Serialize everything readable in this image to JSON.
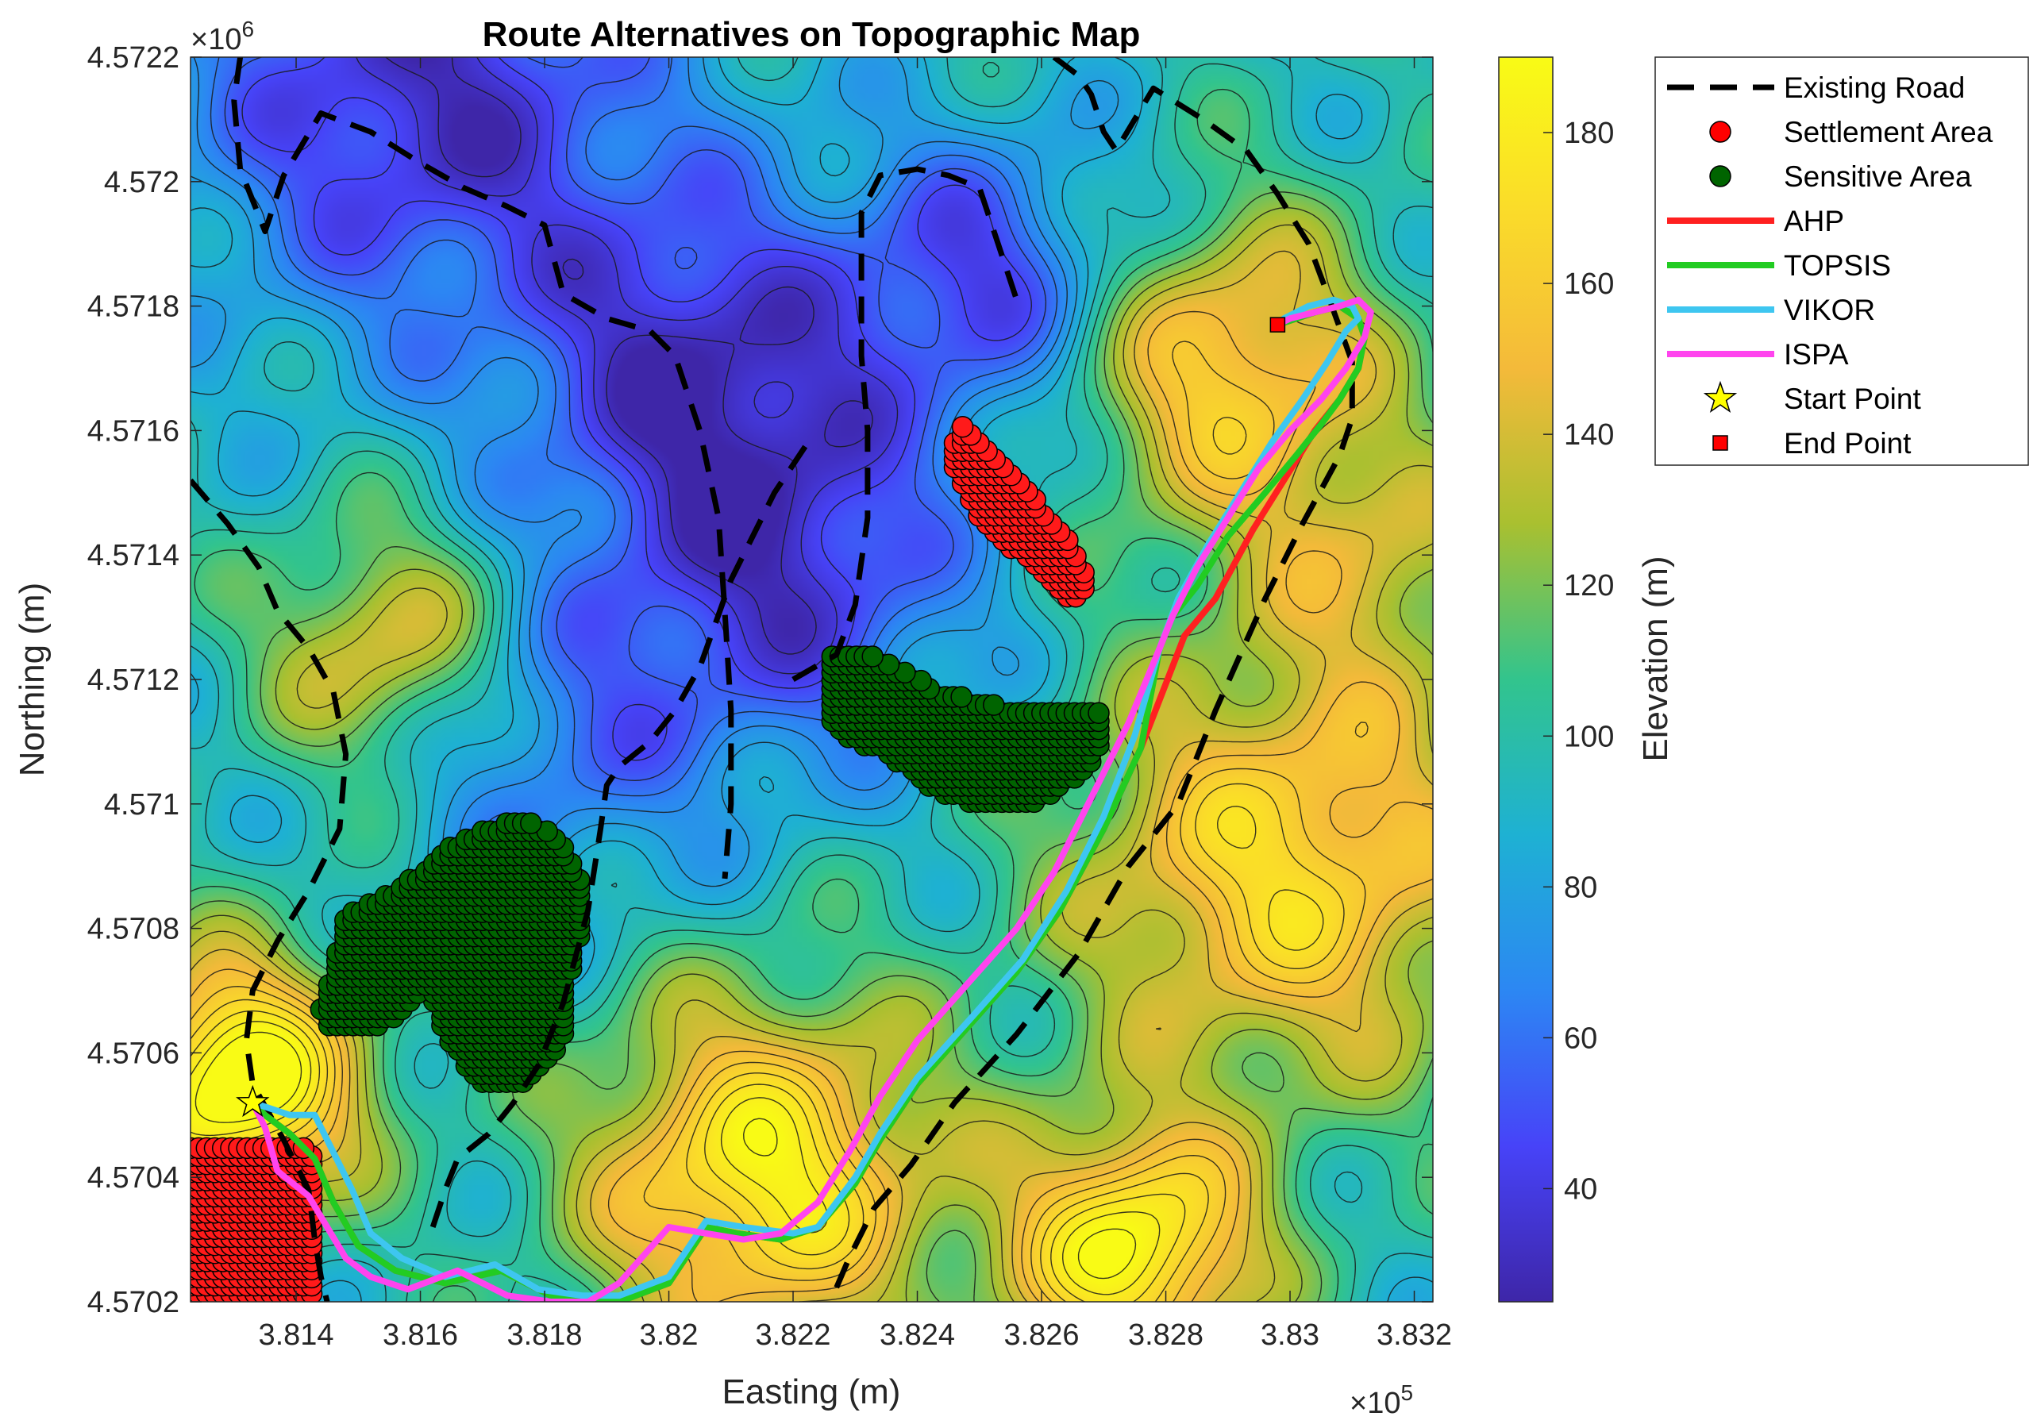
{
  "chart_data": {
    "type": "map",
    "title": "Route Alternatives on Topographic Map",
    "xlabel": "Easting (m)",
    "ylabel": "Northing (m)",
    "colorbar_label": "Elevation (m)",
    "x_multiplier": "×10",
    "x_multiplier_exp": "5",
    "y_multiplier": "×10",
    "y_multiplier_exp": "6",
    "xlim": [
      381230,
      383230
    ],
    "ylim": [
      4570200,
      4572200
    ],
    "clim": [
      25,
      190
    ],
    "x_ticks": [
      381400,
      381600,
      381800,
      382000,
      382200,
      382400,
      382600,
      382800,
      383000,
      383200
    ],
    "x_tick_labels": [
      "3.814",
      "3.816",
      "3.818",
      "3.82",
      "3.822",
      "3.824",
      "3.826",
      "3.828",
      "3.83",
      "3.832"
    ],
    "y_ticks": [
      4570200,
      4570400,
      4570600,
      4570800,
      4571000,
      4571200,
      4571400,
      4571600,
      4571800,
      4572000,
      4572200
    ],
    "y_tick_labels": [
      "4.5702",
      "4.5704",
      "4.5706",
      "4.5708",
      "4.571",
      "4.5712",
      "4.5714",
      "4.5716",
      "4.5718",
      "4.572",
      "4.5722"
    ],
    "colorbar_ticks": [
      40,
      60,
      80,
      100,
      120,
      140,
      160,
      180
    ],
    "colorbar_tick_labels": [
      "40",
      "60",
      "80",
      "100",
      "120",
      "140",
      "160",
      "180"
    ],
    "colormap": [
      "#3e26a8",
      "#4743f8",
      "#2c87f3",
      "#1eb1d3",
      "#32c48d",
      "#a9c030",
      "#f4ba3a",
      "#fadb2a",
      "#f9fb15"
    ],
    "grid": false,
    "legend_position": "outside-right",
    "legend": [
      {
        "label": "Existing Road",
        "style": "dashed",
        "color": "#000000"
      },
      {
        "label": "Settlement Area",
        "style": "circle",
        "color": "#ff0000"
      },
      {
        "label": "Sensitive Area",
        "style": "circle",
        "color": "#006400"
      },
      {
        "label": "AHP",
        "style": "line",
        "color": "#ff2020"
      },
      {
        "label": "TOPSIS",
        "style": "line",
        "color": "#22cc22"
      },
      {
        "label": "VIKOR",
        "style": "line",
        "color": "#3ec6f0"
      },
      {
        "label": "ISPA",
        "style": "line",
        "color": "#ff44ee"
      },
      {
        "label": "Start Point",
        "style": "star",
        "color": "#ffff00"
      },
      {
        "label": "End Point",
        "style": "square",
        "color": "#ff0000"
      }
    ],
    "series": [
      {
        "name": "AHP",
        "color": "#ff2020",
        "x": [
          381330,
          381350,
          381390,
          381430,
          381460,
          381500,
          381560,
          381640,
          381730,
          381810,
          381870,
          381920,
          382000,
          382060,
          382110,
          382180,
          382240,
          382300,
          382340,
          382400,
          382480,
          382560,
          382630,
          382700,
          382760,
          382830,
          382880,
          382940,
          382990,
          383040,
          383080,
          383110,
          383120,
          383110,
          383080,
          383040,
          383010,
          382980
        ],
        "y": [
          4570520,
          4570500,
          4570470,
          4570430,
          4570360,
          4570290,
          4570250,
          4570230,
          4570250,
          4570210,
          4570200,
          4570200,
          4570230,
          4570320,
          4570310,
          4570300,
          4570320,
          4570390,
          4570460,
          4570550,
          4570640,
          4570730,
          4570830,
          4570960,
          4571090,
          4571270,
          4571330,
          4571440,
          4571520,
          4571600,
          4571650,
          4571700,
          4571750,
          4571780,
          4571800,
          4571790,
          4571780,
          4571770
        ]
      },
      {
        "name": "TOPSIS",
        "color": "#22cc22",
        "x": [
          381330,
          381350,
          381390,
          381430,
          381460,
          381500,
          381560,
          381640,
          381730,
          381810,
          381870,
          381920,
          382000,
          382060,
          382110,
          382180,
          382240,
          382300,
          382340,
          382400,
          382480,
          382560,
          382630,
          382700,
          382760,
          382790,
          382810,
          382850,
          382900,
          382960,
          383010,
          383050,
          383080,
          383110,
          383120,
          383110,
          383080,
          383040,
          383010,
          382980
        ],
        "y": [
          4570520,
          4570500,
          4570470,
          4570430,
          4570360,
          4570290,
          4570250,
          4570230,
          4570250,
          4570210,
          4570200,
          4570200,
          4570230,
          4570320,
          4570310,
          4570300,
          4570320,
          4570390,
          4570460,
          4570550,
          4570640,
          4570730,
          4570830,
          4570960,
          4571090,
          4571250,
          4571300,
          4571350,
          4571430,
          4571500,
          4571560,
          4571610,
          4571650,
          4571700,
          4571750,
          4571780,
          4571800,
          4571790,
          4571780,
          4571770
        ]
      },
      {
        "name": "VIKOR",
        "color": "#3ec6f0",
        "x": [
          381330,
          381390,
          381430,
          381460,
          381490,
          381520,
          381570,
          381640,
          381720,
          381790,
          381860,
          381920,
          382000,
          382060,
          382120,
          382200,
          382240,
          382300,
          382340,
          382400,
          382490,
          382570,
          382640,
          382700,
          382750,
          382790,
          382820,
          382870,
          382920,
          382970,
          383020,
          383060,
          383090,
          383110,
          383100,
          383070,
          383030,
          382990
        ],
        "y": [
          4570520,
          4570500,
          4570500,
          4570440,
          4570380,
          4570310,
          4570270,
          4570240,
          4570260,
          4570220,
          4570210,
          4570210,
          4570240,
          4570330,
          4570320,
          4570310,
          4570320,
          4570400,
          4570470,
          4570560,
          4570660,
          4570750,
          4570860,
          4570980,
          4571110,
          4571250,
          4571330,
          4571420,
          4571500,
          4571580,
          4571650,
          4571710,
          4571760,
          4571780,
          4571800,
          4571810,
          4571800,
          4571780
        ]
      },
      {
        "name": "ISPA",
        "color": "#ff44ee",
        "x": [
          381330,
          381350,
          381370,
          381420,
          381450,
          381480,
          381520,
          381580,
          381660,
          381740,
          381810,
          381870,
          381920,
          382000,
          382060,
          382120,
          382180,
          382240,
          382290,
          382340,
          382400,
          382480,
          382560,
          382620,
          382680,
          382740,
          382790,
          382810,
          382850,
          382900,
          382950,
          383000,
          383050,
          383090,
          383120,
          383130,
          383110,
          383080,
          383040,
          383000,
          382980
        ],
        "y": [
          4570520,
          4570480,
          4570410,
          4570370,
          4570320,
          4570270,
          4570240,
          4570220,
          4570250,
          4570210,
          4570200,
          4570200,
          4570230,
          4570320,
          4570310,
          4570300,
          4570310,
          4570360,
          4570440,
          4570530,
          4570620,
          4570710,
          4570800,
          4570890,
          4571010,
          4571130,
          4571250,
          4571300,
          4571380,
          4571460,
          4571540,
          4571600,
          4571650,
          4571700,
          4571750,
          4571790,
          4571810,
          4571800,
          4571790,
          4571780,
          4571770
        ]
      }
    ],
    "existing_roads": [
      {
        "x": [
          381310,
          381300,
          381310,
          381350,
          381380,
          381440,
          381520,
          381600,
          381670,
          381740,
          381800,
          381830,
          381900,
          381970,
          382010,
          382050,
          382080,
          382090,
          382100,
          382100,
          382090
        ],
        "y": [
          4572200,
          4572130,
          4572020,
          4571920,
          4572010,
          4572110,
          4572080,
          4572030,
          4571990,
          4571960,
          4571930,
          4571820,
          4571780,
          4571760,
          4571720,
          4571600,
          4571460,
          4571310,
          4571150,
          4571000,
          4570880
        ]
      },
      {
        "x": [
          381230,
          381290,
          381340,
          381370,
          381420,
          381460,
          381480,
          381470,
          381420,
          381370,
          381330,
          381320,
          381330,
          381380,
          381420,
          381430,
          381440,
          381450
        ],
        "y": [
          4571520,
          4571450,
          4571380,
          4571310,
          4571250,
          4571180,
          4571080,
          4570960,
          4570860,
          4570780,
          4570700,
          4570620,
          4570550,
          4570460,
          4570380,
          4570300,
          4570240,
          4570200
        ]
      },
      {
        "x": [
          381620,
          381640,
          381660,
          381710,
          381750,
          381790,
          381830,
          381870,
          381890,
          381900,
          381920,
          381970,
          382010,
          382050,
          382100,
          382170,
          382230
        ],
        "y": [
          4570320,
          4570380,
          4570430,
          4570470,
          4570520,
          4570580,
          4570680,
          4570830,
          4570960,
          4571030,
          4571060,
          4571100,
          4571150,
          4571220,
          4571360,
          4571500,
          4571590
        ]
      },
      {
        "x": [
          382200,
          382270,
          382300,
          382320,
          382320,
          382310,
          382310,
          382340,
          382400,
          382450,
          382500,
          382530,
          382560
        ],
        "y": [
          4571200,
          4571240,
          4571320,
          4571460,
          4571600,
          4571720,
          4571950,
          4572010,
          4572020,
          4572010,
          4571990,
          4571900,
          4571810
        ]
      },
      {
        "x": [
          382620,
          382660,
          382680,
          382700,
          382720,
          382780,
          382860,
          382930,
          382980,
          383030,
          383060,
          383100,
          383100,
          383080,
          383020,
          382960,
          382880,
          382820,
          382740,
          382660,
          382560,
          382460,
          382390,
          382330,
          382290,
          382260
        ],
        "y": [
          4572200,
          4572170,
          4572140,
          4572080,
          4572050,
          4572150,
          4572100,
          4572050,
          4571980,
          4571900,
          4571820,
          4571710,
          4571620,
          4571560,
          4571450,
          4571330,
          4571150,
          4571000,
          4570900,
          4570760,
          4570630,
          4570520,
          4570420,
          4570350,
          4570270,
          4570200
        ]
      }
    ],
    "settlement_areas": [
      {
        "polygon_x": [
          382470,
          382490,
          382530,
          382590,
          382640,
          382680,
          382650,
          382600,
          382540,
          382500,
          382460,
          382460
        ],
        "polygon_y": [
          4571620,
          4571600,
          4571560,
          4571490,
          4571430,
          4571350,
          4571320,
          4571370,
          4571420,
          4571460,
          4571530,
          4571580
        ]
      },
      {
        "polygon_x": [
          381230,
          381420,
          381430,
          381430,
          381420,
          381230
        ],
        "polygon_y": [
          4570460,
          4570460,
          4570420,
          4570220,
          4570200,
          4570200
        ]
      }
    ],
    "sensitive_areas": [
      {
        "polygon_x": [
          382260,
          382330,
          382440,
          382520,
          382600,
          382690,
          382700,
          382670,
          382590,
          382520,
          382430,
          382350,
          382270,
          382250
        ],
        "polygon_y": [
          4571240,
          4571240,
          4571180,
          4571160,
          4571150,
          4571160,
          4571100,
          4571050,
          4571000,
          4570990,
          4571020,
          4571080,
          4571110,
          4571170
        ]
      },
      {
        "polygon_x": [
          381440,
          381480,
          381560,
          381660,
          381760,
          381820,
          381860,
          381860,
          381840,
          381830,
          381770,
          381700,
          381640,
          381610,
          381570,
          381500,
          381450
        ],
        "polygon_y": [
          4570670,
          4570820,
          4570860,
          4570940,
          4570980,
          4570950,
          4570880,
          4570800,
          4570720,
          4570620,
          4570550,
          4570540,
          4570630,
          4570700,
          4570660,
          4570630,
          4570640
        ]
      }
    ],
    "start_point": {
      "x": 381330,
      "y": 4570520
    },
    "end_point": {
      "x": 382980,
      "y": 4571770
    },
    "terrain_peaks": [
      {
        "x": 381600,
        "y": 4572150,
        "z": 32,
        "s": 380
      },
      {
        "x": 382050,
        "y": 4571700,
        "z": 38,
        "s": 300
      },
      {
        "x": 382200,
        "y": 4571350,
        "z": 45,
        "s": 300
      },
      {
        "x": 382520,
        "y": 4571850,
        "z": 45,
        "s": 230
      },
      {
        "x": 381800,
        "y": 4571100,
        "z": 60,
        "s": 260
      },
      {
        "x": 381300,
        "y": 4570550,
        "z": 205,
        "s": 200
      },
      {
        "x": 381550,
        "y": 4571250,
        "z": 150,
        "s": 200
      },
      {
        "x": 382150,
        "y": 4570400,
        "z": 185,
        "s": 280
      },
      {
        "x": 382750,
        "y": 4570280,
        "z": 190,
        "s": 200
      },
      {
        "x": 383000,
        "y": 4570900,
        "z": 170,
        "s": 350
      },
      {
        "x": 383150,
        "y": 4571400,
        "z": 130,
        "s": 200
      },
      {
        "x": 382900,
        "y": 4571700,
        "z": 165,
        "s": 250
      }
    ]
  }
}
